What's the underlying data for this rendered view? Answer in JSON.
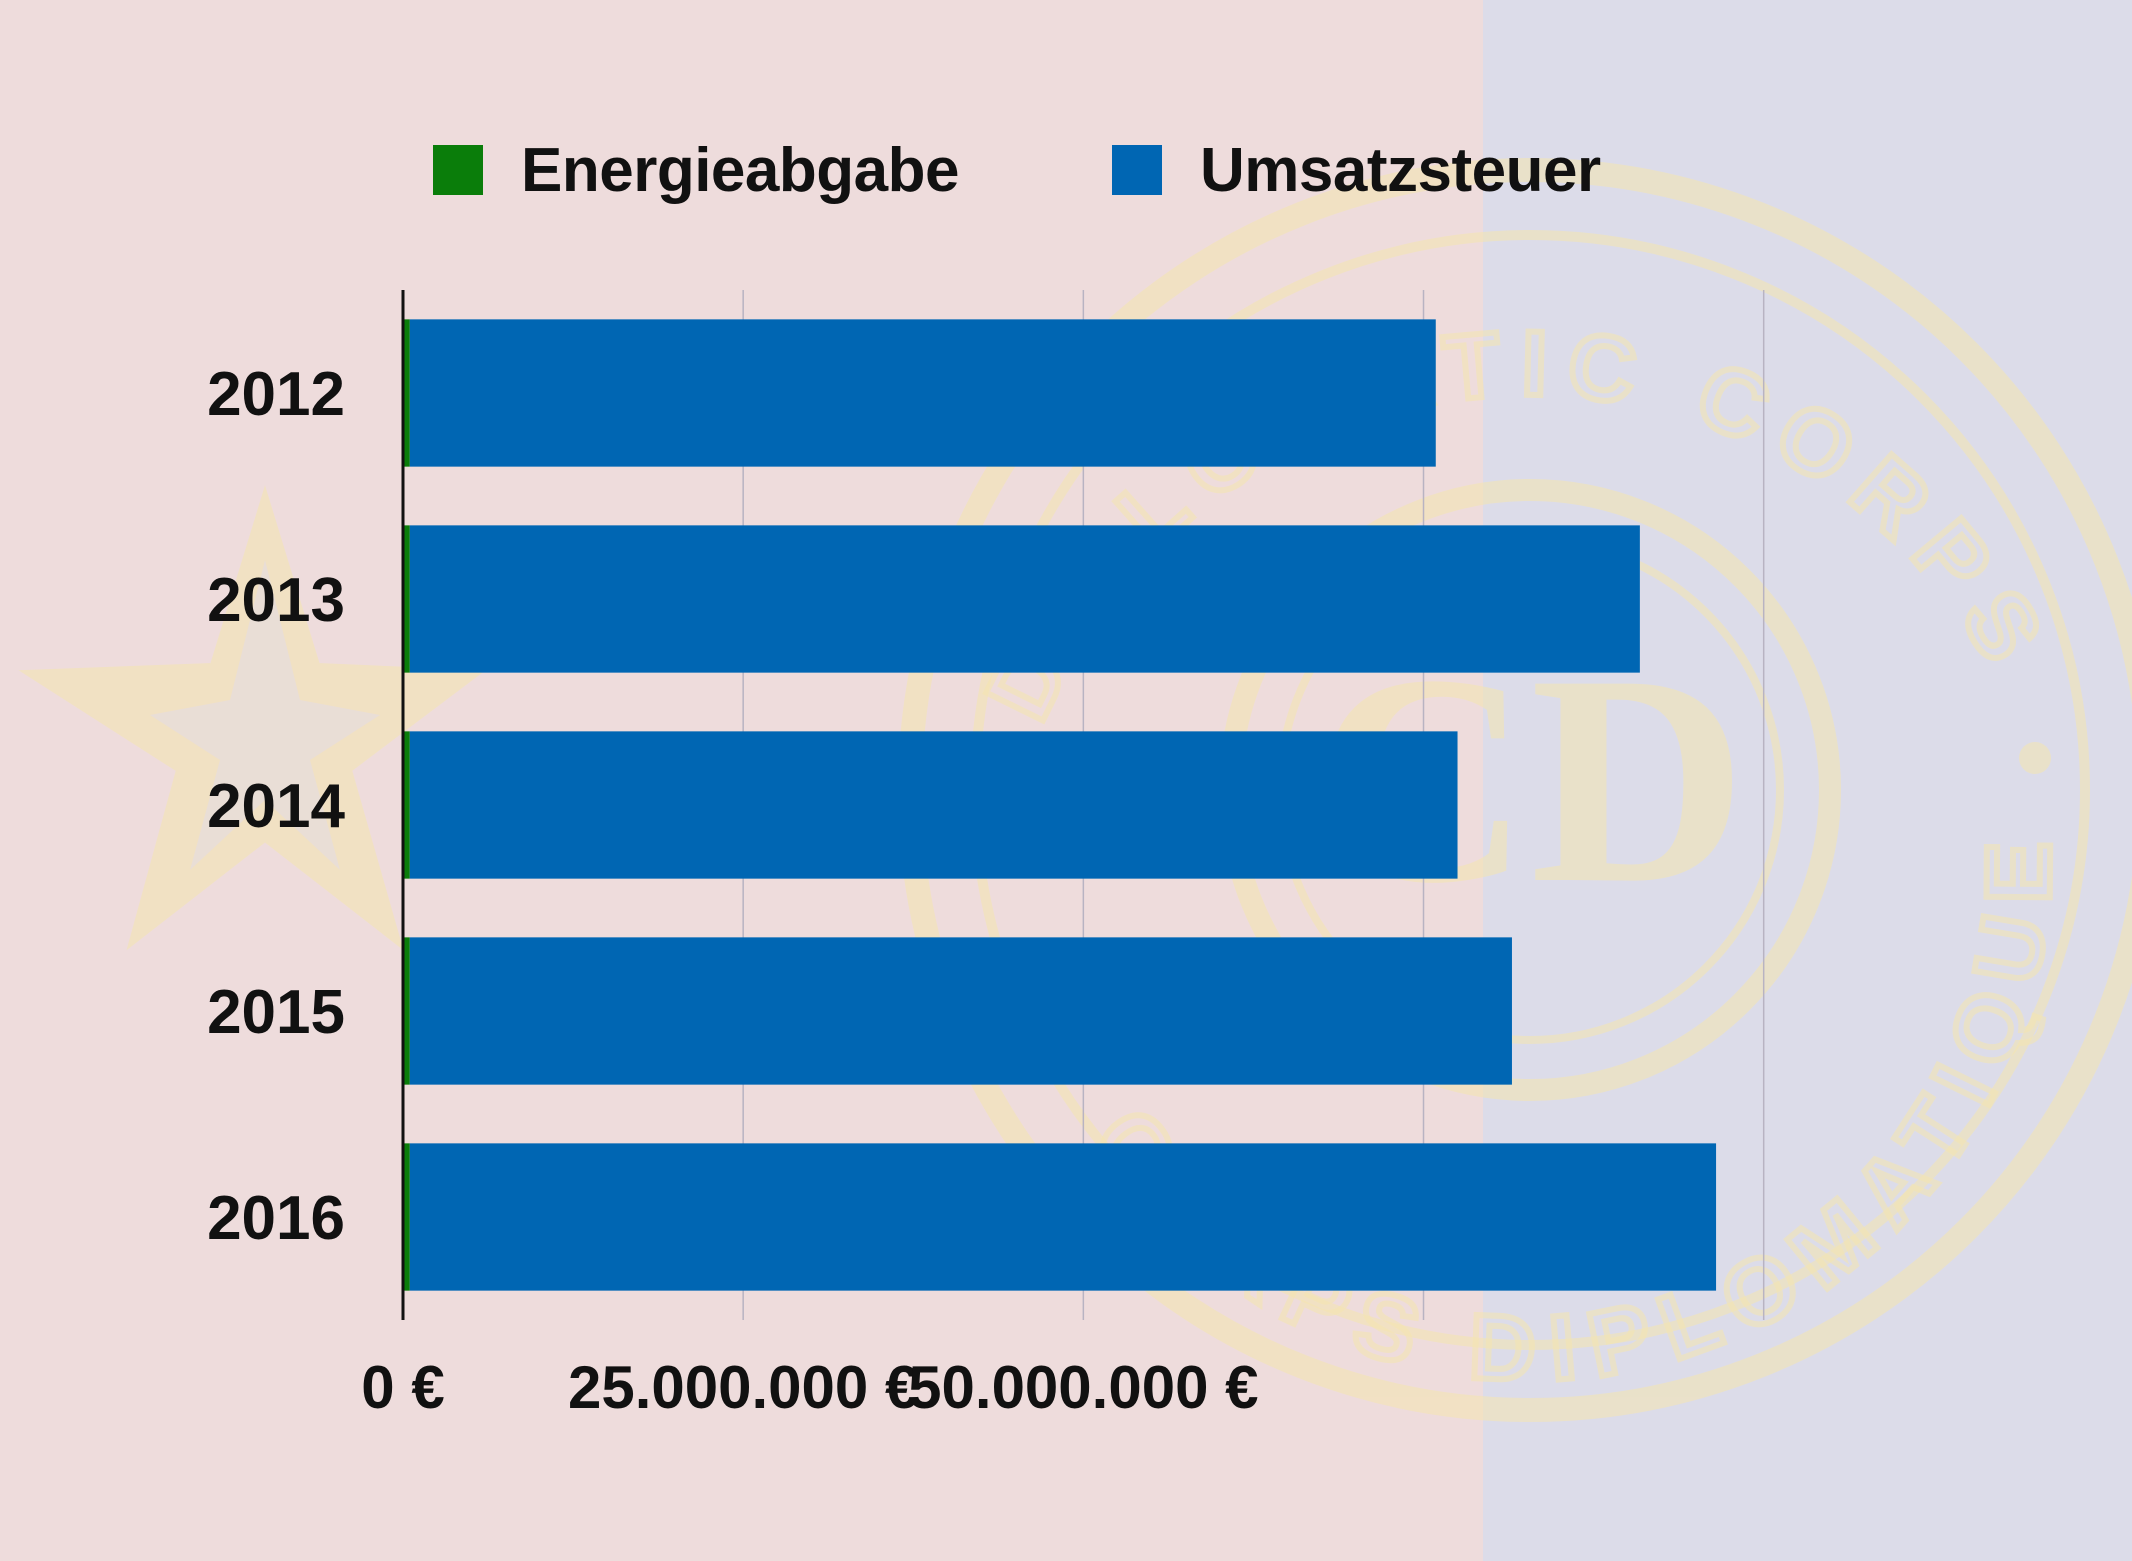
{
  "colors": {
    "background_left": "#eedcdc",
    "background_right": "#dcdce9",
    "energieabgabe": "#0a7d0a",
    "umsatzsteuer": "#0066b3",
    "watermark": "#f5e6b0"
  },
  "legend": {
    "placement": "top",
    "items": [
      {
        "label": "Energieabgabe",
        "color": "#0a7d0a"
      },
      {
        "label": "Umsatzsteuer",
        "color": "#0066b3"
      }
    ]
  },
  "watermark": {
    "top_text": "DIPLOMATIC CORPS",
    "bottom_text": "CORPS DIPLOMATIQUE",
    "center_text": "CD"
  },
  "chart_data": {
    "type": "bar",
    "orientation": "horizontal",
    "stacked": true,
    "categories": [
      "2012",
      "2013",
      "2014",
      "2015",
      "2016"
    ],
    "series": [
      {
        "name": "Energieabgabe",
        "values": [
          500000,
          500000,
          500000,
          500000,
          500000
        ]
      },
      {
        "name": "Umsatzsteuer",
        "values": [
          75400000,
          90400000,
          77000000,
          81000000,
          96000000
        ]
      }
    ],
    "xlim": [
      0,
      117000000
    ],
    "x_ticks": [
      0,
      25000000,
      50000000
    ],
    "x_tick_labels": [
      "0 €",
      "25.000.000 €",
      "50.000.000 €"
    ],
    "gridlines": [
      25000000,
      50000000,
      75000000,
      100000000
    ],
    "grid": true,
    "title": "",
    "xlabel": "",
    "ylabel": ""
  }
}
